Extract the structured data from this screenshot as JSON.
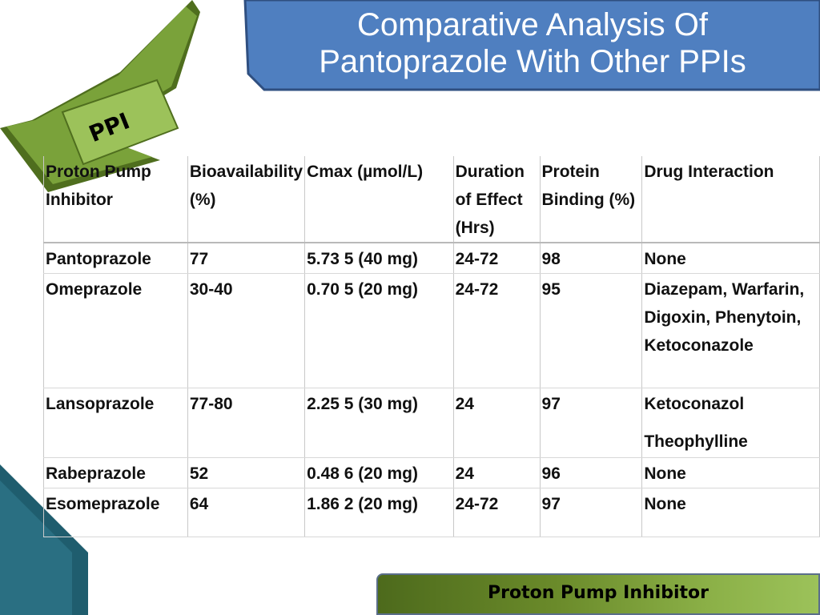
{
  "title": {
    "line1": "Comparative Analysis Of",
    "line2": "Pantoprazole With Other PPIs"
  },
  "ribbon_label": "PPI",
  "table": {
    "headers": [
      "Proton Pump Inhibitor",
      "Bioavailability (%)",
      "Cmax (µmol/L)",
      "Duration of Effect (Hrs)",
      "Protein Binding (%)",
      "Drug Interaction"
    ],
    "rows": [
      [
        "Pantoprazole",
        "77",
        "5.73 5 (40 mg)",
        "24-72",
        "98",
        "None"
      ],
      [
        "Omeprazole",
        "30-40",
        "0.70 5 (20 mg)",
        "24-72",
        "95",
        "Diazepam, Warfarin, Digoxin, Phenytoin, Ketoconazole"
      ],
      [
        "Lansoprazole",
        "77-80",
        "2.25 5 (30 mg)",
        "24",
        "97",
        "Ketoconazol"
      ],
      [
        "Rabeprazole",
        "52",
        "0.48 6 (20 mg)",
        "24",
        "96",
        "None"
      ],
      [
        "Esomeprazole",
        "64",
        "1.86 2 (20 mg)",
        "24-72",
        "97",
        "None"
      ]
    ],
    "lansoprazole_extra_interaction": "Theophylline"
  },
  "footer_label": "Proton Pump Inhibitor",
  "colors": {
    "title_banner": "#4f7fc0",
    "title_banner_border": "#2f4f80",
    "ribbon_green": "#7aa23a",
    "ribbon_dark": "#4f6e1e",
    "corner_teal": "#1f5d6e",
    "footer_green": "#8bb047"
  }
}
